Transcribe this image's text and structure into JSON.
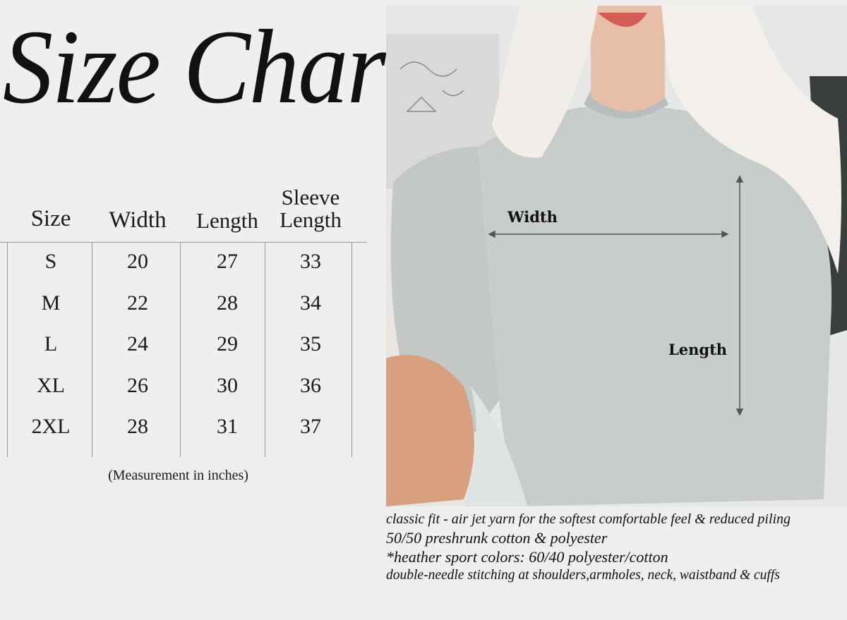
{
  "title": "Size Chart",
  "table": {
    "headers": [
      "Size",
      "Width",
      "Length",
      "Sleeve Length"
    ],
    "rows": [
      [
        "S",
        "20",
        "27",
        "33"
      ],
      [
        "M",
        "22",
        "28",
        "34"
      ],
      [
        "L",
        "24",
        "29",
        "35"
      ],
      [
        "XL",
        "26",
        "30",
        "36"
      ],
      [
        "2XL",
        "28",
        "31",
        "37"
      ]
    ],
    "note": "(Measurement in inches)"
  },
  "photo": {
    "width_label": "Width",
    "length_label": "Length"
  },
  "description": [
    "classic fit - air jet yarn for the softest comfortable feel & reduced piling",
    "50/50 preshrunk cotton & polyester",
    "*heather sport colors: 60/40 polyester/cotton",
    "double-needle stitching at shoulders,armholes, neck, waistband & cuffs"
  ],
  "colors": {
    "background": "#f0efef",
    "sweatshirt": "#c8cccb",
    "text": "#1a1a1a"
  }
}
